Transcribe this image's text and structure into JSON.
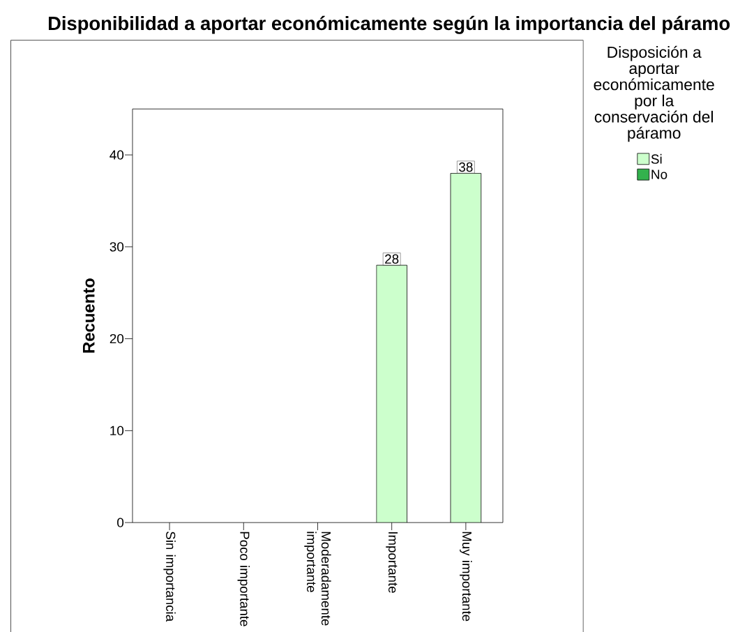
{
  "chart_data": {
    "type": "bar",
    "title": "Disponibilidad a aportar económicamente según la importancia del páramo",
    "categories": [
      "Sin importancia",
      "Poco importante",
      "Moderadamente importante",
      "Importante",
      "Muy importante"
    ],
    "series": [
      {
        "name": "Si",
        "color": "#ccffcc",
        "values": [
          null,
          null,
          null,
          28,
          38
        ],
        "value_labels": [
          null,
          null,
          null,
          "28",
          "38"
        ]
      },
      {
        "name": "No",
        "color": "#33b24d",
        "values": [
          null,
          null,
          null,
          null,
          null
        ]
      }
    ],
    "ylabel": "Recuento",
    "legend_title": "Disposición a aportar económicamente por la conservación del páramo",
    "legend": "right",
    "ylim": [
      0,
      45
    ],
    "yticks": [
      0,
      10,
      20,
      30,
      40
    ]
  }
}
